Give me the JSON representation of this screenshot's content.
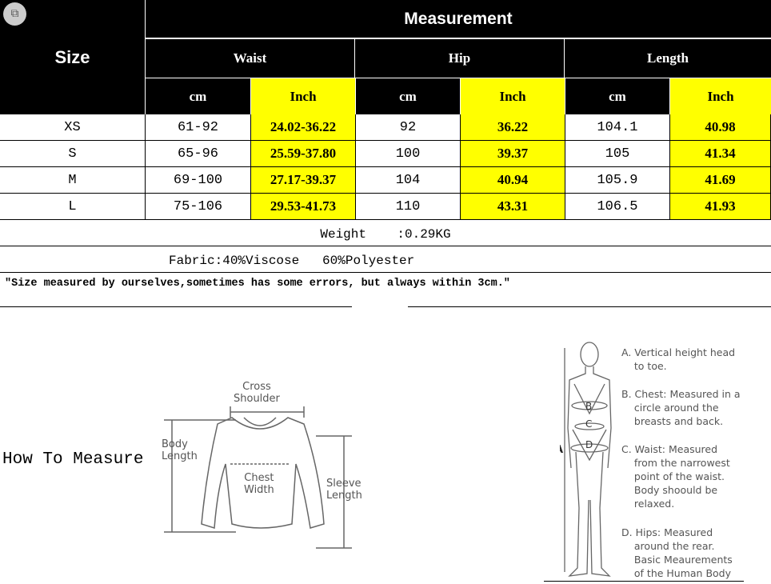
{
  "header": {
    "size": "Size",
    "measurement": "Measurement",
    "groups": [
      "Waist",
      "Hip",
      "Length"
    ],
    "units": [
      "cm",
      "Inch",
      "cm",
      "Inch",
      "cm",
      "Inch"
    ]
  },
  "rows": [
    {
      "size": "XS",
      "values": [
        "61-92",
        "24.02-36.22",
        "92",
        "36.22",
        "104.1",
        "40.98"
      ]
    },
    {
      "size": "S",
      "values": [
        "65-96",
        "25.59-37.80",
        "100",
        "39.37",
        "105",
        "41.34"
      ]
    },
    {
      "size": "M",
      "values": [
        "69-100",
        "27.17-39.37",
        "104",
        "40.94",
        "105.9",
        "41.69"
      ]
    },
    {
      "size": "L",
      "values": [
        "75-106",
        "29.53-41.73",
        "110",
        "43.31",
        "106.5",
        "41.93"
      ]
    }
  ],
  "weight": "Weight    :0.29KG",
  "fabric": "Fabric:40%Viscose   60%Polyester",
  "note": "\"Size measured by ourselves,sometimes has some errors, but always within 3cm.\"",
  "how_to_measure": "How To Measure",
  "sweater": {
    "cross_shoulder": "Cross\nShoulder",
    "body_length": "Body\nLength",
    "chest_width": "Chest\nWidth",
    "sleeve_length": "Sleeve\nLength"
  },
  "body": {
    "labels": [
      "A",
      "B",
      "C",
      "D"
    ],
    "desc": [
      "A. Vertical height head\n    to toe.",
      "B. Chest: Measured in a\n    circle around the\n    breasts and back.",
      "C. Waist: Measured\n    from the narrowest\n    point of the waist.\n    Body shoould be\n    relaxed.",
      "D. Hips: Measured\n    around the rear.\n    Basic Meaurements\n    of the Human Body"
    ]
  },
  "colors": {
    "header_bg": "#000000",
    "inch_bg": "#ffff00"
  }
}
